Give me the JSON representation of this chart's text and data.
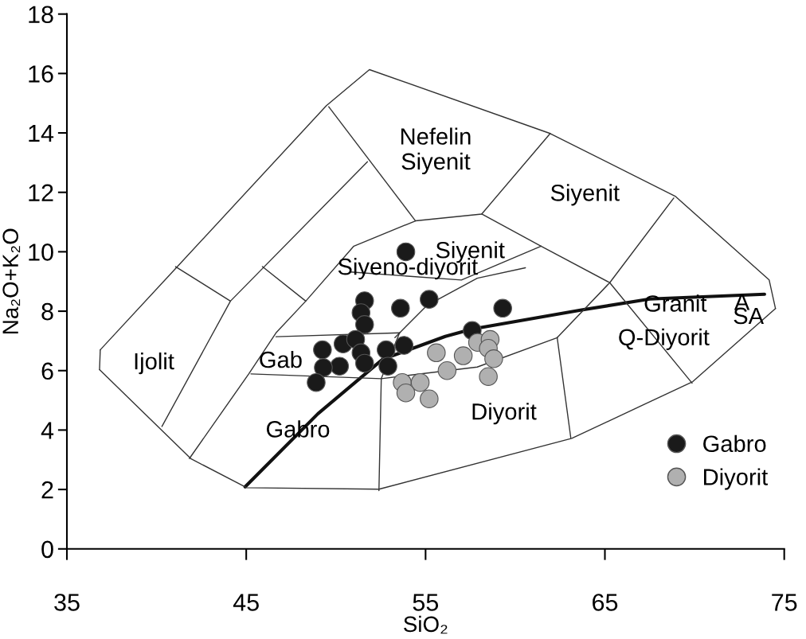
{
  "chart_data": {
    "type": "scatter",
    "xlabel": "SiO₂",
    "ylabel": "Na₂O+K₂O",
    "xlim": [
      35,
      75
    ],
    "xticks": [
      35,
      45,
      55,
      65,
      75
    ],
    "ylim": [
      0,
      18
    ],
    "yticks": [
      0,
      2,
      4,
      6,
      8,
      10,
      12,
      14,
      16,
      18
    ],
    "grid": false,
    "legend": "bottom right",
    "series": [
      {
        "type": "line",
        "color": "#111111",
        "x": [
          44.94,
          49.0,
          52.6,
          56.1,
          57.6,
          63.7,
          67.5,
          73.9
        ],
        "values": [
          2.09,
          4.55,
          6.38,
          7.15,
          7.4,
          8.04,
          8.41,
          8.57
        ]
      },
      {
        "type": "line",
        "color": "#333333",
        "x": [
          36.86,
          41.13,
          49.47,
          51.87,
          61.95,
          68.92,
          74.16,
          74.51
        ],
        "values": [
          6.7,
          9.48,
          14.92,
          16.13,
          13.98,
          11.87,
          9.05,
          8.09
        ]
      },
      {
        "type": "line",
        "color": "#333333",
        "x": [
          36.82,
          41.93,
          45.03,
          52.4,
          63.15,
          69.9,
          74.51
        ],
        "values": [
          6.03,
          3.03,
          2.06,
          2.01,
          3.72,
          5.63,
          8.09
        ]
      },
      {
        "type": "line",
        "color": "#333333",
        "x": [
          36.82,
          36.86
        ],
        "values": [
          6.03,
          6.7
        ]
      },
      {
        "type": "line",
        "color": "#333333",
        "x": [
          41.06,
          44.12
        ],
        "values": [
          9.5,
          8.34
        ]
      },
      {
        "type": "line",
        "color": "#333333",
        "x": [
          40.3,
          44.12,
          51.76
        ],
        "values": [
          4.12,
          8.34,
          13.03
        ]
      },
      {
        "type": "line",
        "color": "#333333",
        "x": [
          45.9,
          48.32
        ],
        "values": [
          9.5,
          8.34
        ]
      },
      {
        "type": "line",
        "color": "#333333",
        "x": [
          41.83,
          45.14,
          46.66,
          48.32,
          51.0,
          54.44,
          58.13,
          61.95
        ],
        "values": [
          3.04,
          5.89,
          7.27,
          8.34,
          10.19,
          11.04,
          11.27,
          13.98
        ]
      },
      {
        "type": "line",
        "color": "#333333",
        "x": [
          49.6,
          54.44
        ],
        "values": [
          14.88,
          11.04
        ]
      },
      {
        "type": "line",
        "color": "#333333",
        "x": [
          58.13,
          61.44,
          65.27,
          69.86
        ],
        "values": [
          11.27,
          10.19,
          8.96,
          5.58
        ]
      },
      {
        "type": "line",
        "color": "#333333",
        "x": [
          62.34,
          65.27,
          68.84
        ],
        "values": [
          7.11,
          8.96,
          11.81
        ]
      },
      {
        "type": "line",
        "color": "#333333",
        "x": [
          62.34,
          63.1
        ],
        "values": [
          7.11,
          3.73
        ]
      },
      {
        "type": "line",
        "color": "#333333",
        "x": [
          53.29,
          55.07,
          57.88,
          60.57
        ],
        "values": [
          7.11,
          8.19,
          9.11,
          9.46
        ]
      },
      {
        "type": "line",
        "color": "#333333",
        "x": [
          50.8,
          57.0,
          61.44
        ],
        "values": [
          9.32,
          9.05,
          10.19
        ]
      },
      {
        "type": "line",
        "color": "#333333",
        "x": [
          46.66,
          53.55
        ],
        "values": [
          7.14,
          7.27
        ]
      },
      {
        "type": "line",
        "color": "#333333",
        "x": [
          52.4,
          52.53,
          53.55
        ],
        "values": [
          1.96,
          5.73,
          7.27
        ]
      },
      {
        "type": "line",
        "color": "#333333",
        "x": [
          45.26,
          52.53,
          57.88,
          62.34
        ],
        "values": [
          5.89,
          5.73,
          6.12,
          7.11
        ]
      },
      {
        "marker": "circle",
        "name": "Gabro",
        "color": "#1a1a1a",
        "x": [
          53.9,
          51.6,
          51.4,
          51.6,
          53.6,
          55.2,
          59.3,
          57.6,
          49.25,
          50.4,
          51.1,
          51.4,
          51.6,
          50.2,
          49.3,
          48.9,
          52.8,
          53.8,
          52.9
        ],
        "values": [
          10.0,
          8.35,
          7.95,
          7.55,
          8.1,
          8.4,
          8.1,
          7.35,
          6.7,
          6.9,
          7.05,
          6.6,
          6.25,
          6.15,
          6.1,
          5.6,
          6.7,
          6.85,
          6.15
        ]
      },
      {
        "marker": "circle",
        "name": "Diyorit",
        "color": "#b0b0b0",
        "x": [
          55.6,
          57.1,
          57.9,
          58.6,
          58.5,
          58.8,
          58.5,
          56.2,
          53.7,
          54.7,
          53.9,
          55.2
        ],
        "values": [
          6.6,
          6.5,
          6.95,
          7.05,
          6.75,
          6.4,
          5.8,
          6.0,
          5.6,
          5.6,
          5.25,
          5.05
        ]
      }
    ],
    "annotations": [
      "Nefelin\nSiyenit",
      "Siyenit",
      "Siyenit",
      "Siyeno-diyorit",
      "Granit",
      "A",
      "SA",
      "Q-Diyorit",
      "Ijolit",
      "Gab",
      "Gabro",
      "Diyorit"
    ]
  }
}
